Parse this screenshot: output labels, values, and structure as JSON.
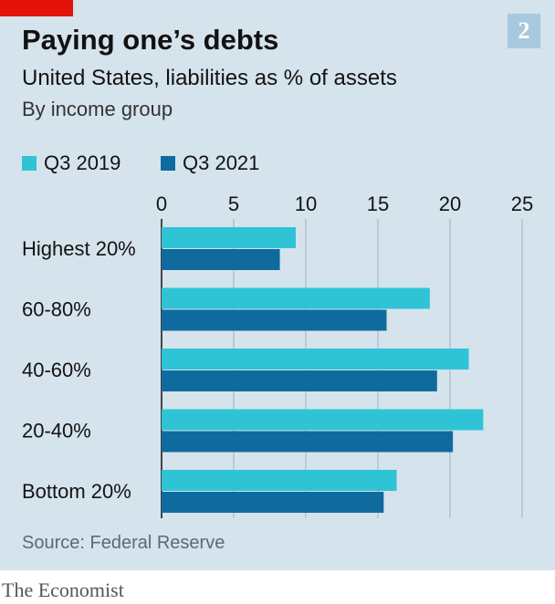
{
  "header": {
    "chart_number": "2",
    "title": "Paying one’s debts",
    "subtitle": "United States, liabilities as % of assets",
    "subtitle2": "By income group"
  },
  "legend": [
    {
      "label": "Q3 2019",
      "color": "#2ec4d6"
    },
    {
      "label": "Q3 2021",
      "color": "#0f6a9e"
    }
  ],
  "source": "Source: Federal Reserve",
  "brand": "The Economist",
  "chart_data": {
    "type": "bar",
    "orientation": "horizontal",
    "categories": [
      "Highest 20%",
      "60-80%",
      "40-60%",
      "20-40%",
      "Bottom 20%"
    ],
    "series": [
      {
        "name": "Q3 2019",
        "color": "#2ec4d6",
        "values": [
          9.3,
          18.6,
          21.3,
          22.3,
          16.3
        ]
      },
      {
        "name": "Q3 2021",
        "color": "#0f6a9e",
        "values": [
          8.2,
          15.6,
          19.1,
          20.2,
          15.4
        ]
      }
    ],
    "xlim": [
      0,
      25
    ],
    "xticks": [
      0,
      5,
      10,
      15,
      20,
      25
    ],
    "tick_labels": [
      "0",
      "5",
      "10",
      "15",
      "20",
      "25"
    ],
    "grid": true,
    "legend_position": "top-left"
  }
}
